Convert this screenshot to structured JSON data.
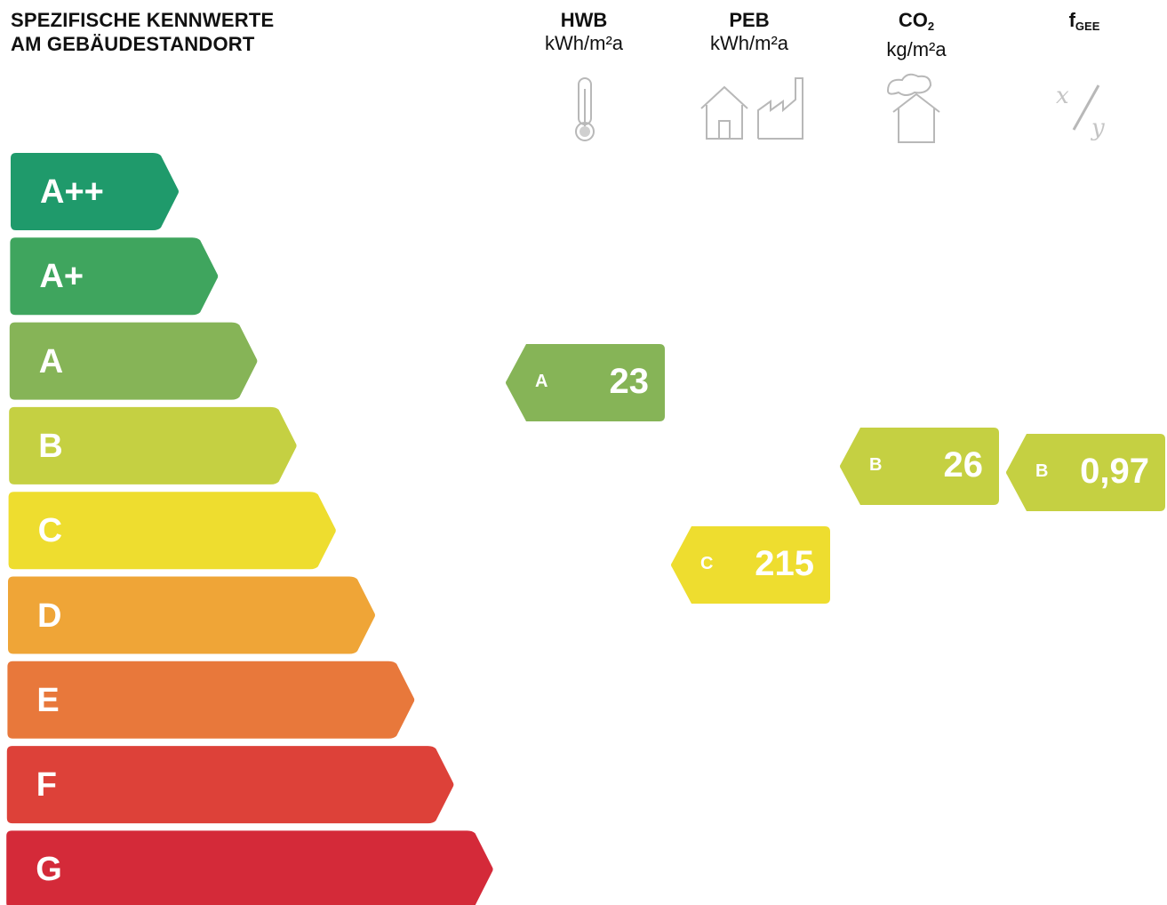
{
  "heading": {
    "line1": "SPEZIFISCHE KENNWERTE",
    "line2": "AM GEBÄUDESTANDORT"
  },
  "columns": [
    {
      "key": "hwb",
      "name": "HWB",
      "unit": "kWh/m²a",
      "icon": "thermometer-icon"
    },
    {
      "key": "peb",
      "name": "PEB",
      "unit": "kWh/m²a",
      "icon": "house-factory-icon"
    },
    {
      "key": "co2",
      "name": "CO",
      "name_sub": "2",
      "unit": "kg/m²a",
      "icon": "house-cloud-icon"
    },
    {
      "key": "fgee",
      "name": "f",
      "name_sub": "GEE",
      "unit": "",
      "icon": "fraction-icon"
    }
  ],
  "chart_data": {
    "type": "bar",
    "categories": [
      "A++",
      "A+",
      "A",
      "B",
      "C",
      "D",
      "E",
      "F",
      "G"
    ],
    "colors": [
      "#1f9a6b",
      "#3fa55e",
      "#86b457",
      "#c5d042",
      "#eedd2f",
      "#efa537",
      "#e8783b",
      "#dd4139",
      "#d42a39"
    ],
    "ratings": [
      {
        "indicator": "HWB",
        "class": "A",
        "value": "23"
      },
      {
        "indicator": "PEB",
        "class": "C",
        "value": "215"
      },
      {
        "indicator": "CO2",
        "class": "B",
        "value": "26"
      },
      {
        "indicator": "fGEE",
        "class": "B",
        "value": "0,97"
      }
    ]
  }
}
